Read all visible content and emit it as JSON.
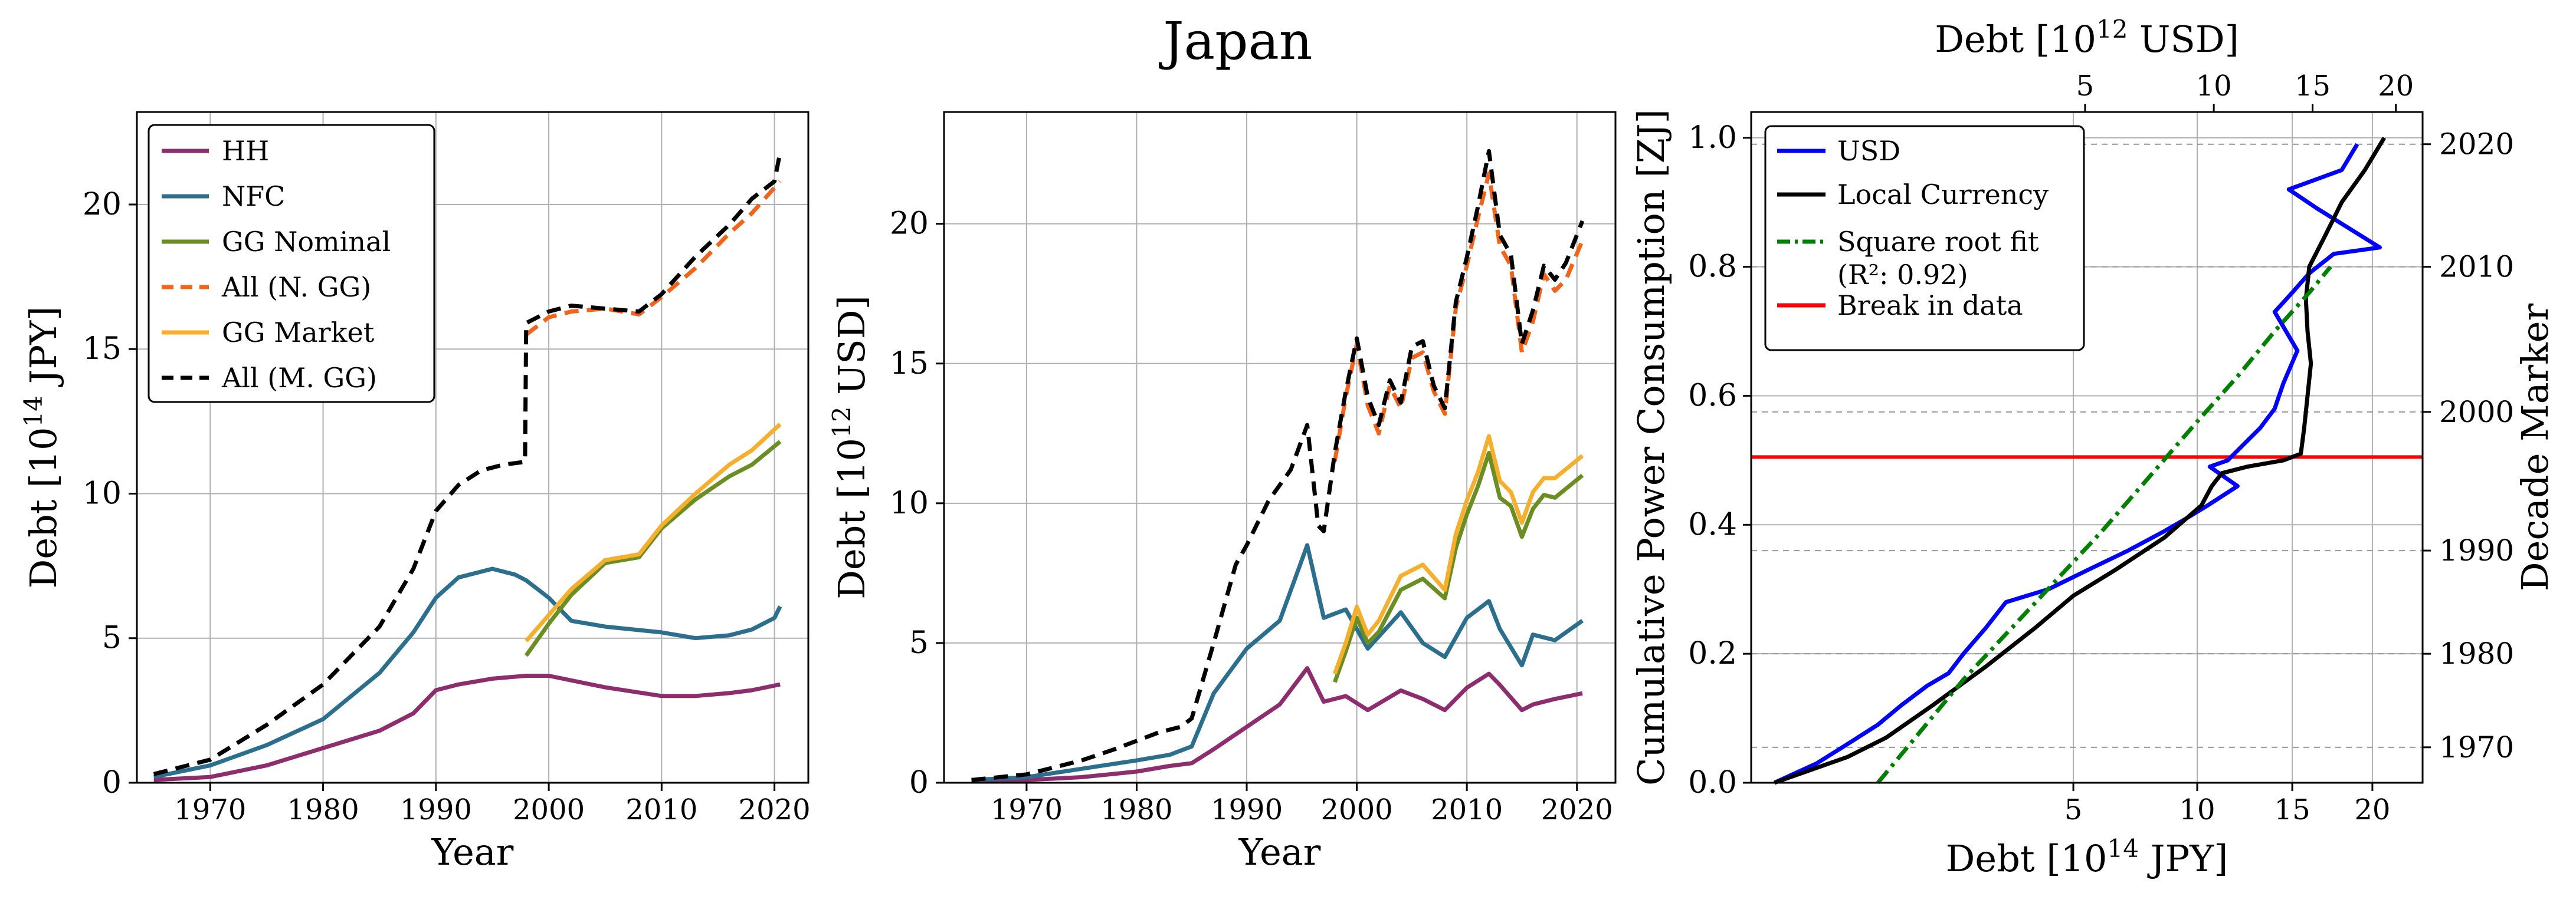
{
  "suptitle": "Japan",
  "colors": {
    "HH": "#8e2d6e",
    "NFC": "#2b6e8e",
    "GGN": "#6b8e23",
    "AllN": "#f26419",
    "GGM": "#f6ae2d",
    "AllM": "#000000",
    "USD": "#0000ff",
    "Local": "#000000",
    "Fit": "#008000",
    "Break": "#ff0000"
  },
  "chart_data": [
    {
      "type": "line",
      "title": "",
      "xlabel": "Year",
      "ylabel_main": "Debt [10",
      "ylabel_exp": "14",
      "ylabel_tail": " JPY]",
      "xlim": [
        1963.5,
        2023
      ],
      "ylim": [
        0,
        23.2
      ],
      "xticks": [
        1970,
        1980,
        1990,
        2000,
        2010,
        2020
      ],
      "yticks": [
        0,
        5,
        10,
        15,
        20
      ],
      "grid": true,
      "legend_position": "top-left",
      "legend": [
        {
          "key": "HH",
          "label": "HH",
          "dash": false
        },
        {
          "key": "NFC",
          "label": "NFC",
          "dash": false
        },
        {
          "key": "GGN",
          "label": "GG Nominal",
          "dash": false
        },
        {
          "key": "AllN",
          "label": "All (N. GG)",
          "dash": true
        },
        {
          "key": "GGM",
          "label": "GG Market",
          "dash": false
        },
        {
          "key": "AllM",
          "label": "All (M. GG)",
          "dash": true
        }
      ],
      "series": [
        {
          "key": "HH",
          "name": "HH",
          "dash": false,
          "x": [
            1965,
            1970,
            1975,
            1980,
            1985,
            1988,
            1990,
            1992,
            1995,
            1998,
            2000,
            2005,
            2010,
            2013,
            2016,
            2018,
            2020.5
          ],
          "y": [
            0.1,
            0.2,
            0.6,
            1.2,
            1.8,
            2.4,
            3.2,
            3.4,
            3.6,
            3.7,
            3.7,
            3.3,
            3.0,
            3.0,
            3.1,
            3.2,
            3.4
          ]
        },
        {
          "key": "NFC",
          "name": "NFC",
          "dash": false,
          "x": [
            1965,
            1970,
            1975,
            1980,
            1985,
            1988,
            1990,
            1992,
            1995,
            1997,
            1998,
            2000,
            2002,
            2005,
            2010,
            2013,
            2016,
            2018,
            2020,
            2020.5
          ],
          "y": [
            0.2,
            0.6,
            1.3,
            2.2,
            3.8,
            5.2,
            6.4,
            7.1,
            7.4,
            7.2,
            7.0,
            6.4,
            5.6,
            5.4,
            5.2,
            5.0,
            5.1,
            5.3,
            5.7,
            6.1
          ]
        },
        {
          "key": "GGN",
          "name": "GG Nominal",
          "dash": false,
          "x": [
            1998,
            2000,
            2002,
            2005,
            2008,
            2010,
            2013,
            2016,
            2018,
            2020.5
          ],
          "y": [
            4.4,
            5.5,
            6.5,
            7.6,
            7.8,
            8.8,
            9.8,
            10.6,
            11.0,
            11.8
          ]
        },
        {
          "key": "AllN",
          "name": "All (N. GG)",
          "dash": true,
          "x": [
            1998,
            2000,
            2002,
            2005,
            2008,
            2010,
            2013,
            2016,
            2018,
            2020.5
          ],
          "y": [
            15.5,
            16.1,
            16.3,
            16.4,
            16.2,
            16.8,
            17.8,
            19.0,
            19.7,
            20.8
          ]
        },
        {
          "key": "GGM",
          "name": "GG Market",
          "dash": false,
          "x": [
            1998,
            2000,
            2002,
            2005,
            2008,
            2010,
            2013,
            2016,
            2018,
            2020.5
          ],
          "y": [
            4.9,
            5.8,
            6.7,
            7.7,
            7.9,
            8.9,
            10.0,
            11.0,
            11.5,
            12.4
          ]
        },
        {
          "key": "AllM",
          "name": "All (M. GG)",
          "dash": true,
          "x": [
            1965,
            1970,
            1975,
            1980,
            1985,
            1988,
            1990,
            1992,
            1994,
            1995,
            1996,
            1997.9,
            1998,
            2000,
            2002,
            2005,
            2008,
            2010,
            2013,
            2016,
            2018,
            2020,
            2020.5
          ],
          "y": [
            0.3,
            0.8,
            2.0,
            3.4,
            5.4,
            7.4,
            9.4,
            10.3,
            10.8,
            10.9,
            11.0,
            11.1,
            15.9,
            16.3,
            16.5,
            16.4,
            16.3,
            16.9,
            18.2,
            19.3,
            20.2,
            20.8,
            21.8
          ]
        }
      ]
    },
    {
      "type": "line",
      "title": "",
      "xlabel": "Year",
      "ylabel_main": "Debt [10",
      "ylabel_exp": "12",
      "ylabel_tail": " USD]",
      "xlim": [
        1962.5,
        2023.5
      ],
      "ylim": [
        0,
        24
      ],
      "xticks": [
        1970,
        1980,
        1990,
        2000,
        2010,
        2020
      ],
      "yticks": [
        0,
        5,
        10,
        15,
        20
      ],
      "grid": true,
      "series": [
        {
          "key": "HH",
          "name": "HH",
          "dash": false,
          "x": [
            1965,
            1970,
            1975,
            1980,
            1983,
            1985,
            1987,
            1990,
            1993,
            1995.5,
            1997,
            1999,
            2001,
            2004,
            2006,
            2008,
            2010,
            2012,
            2013,
            2015,
            2016,
            2018,
            2020.5
          ],
          "y": [
            0.05,
            0.1,
            0.2,
            0.4,
            0.6,
            0.7,
            1.2,
            2.0,
            2.8,
            4.1,
            2.9,
            3.1,
            2.6,
            3.3,
            3.0,
            2.6,
            3.4,
            3.9,
            3.5,
            2.6,
            2.8,
            3.0,
            3.2
          ]
        },
        {
          "key": "NFC",
          "name": "NFC",
          "dash": false,
          "x": [
            1965,
            1970,
            1975,
            1980,
            1983,
            1985,
            1987,
            1990,
            1993,
            1995.5,
            1997,
            1999,
            2001,
            2004,
            2006,
            2008,
            2010,
            2012,
            2013,
            2015,
            2016,
            2018,
            2020.5
          ],
          "y": [
            0.1,
            0.2,
            0.5,
            0.8,
            1.0,
            1.3,
            3.2,
            4.8,
            5.8,
            8.5,
            5.9,
            6.2,
            4.8,
            6.1,
            5.0,
            4.5,
            5.9,
            6.5,
            5.5,
            4.2,
            5.3,
            5.1,
            5.8
          ]
        },
        {
          "key": "GGN",
          "name": "GG Nominal",
          "dash": false,
          "x": [
            1998,
            1999,
            2000,
            2001,
            2002,
            2004,
            2006,
            2008,
            2009,
            2010,
            2011,
            2012,
            2013,
            2014,
            2015,
            2016,
            2017,
            2018,
            2020.5
          ],
          "y": [
            3.6,
            4.7,
            5.9,
            5.0,
            5.4,
            6.9,
            7.3,
            6.6,
            8.4,
            9.6,
            10.6,
            11.8,
            10.2,
            9.9,
            8.8,
            9.8,
            10.3,
            10.2,
            11.0
          ]
        },
        {
          "key": "AllN",
          "name": "All (N. GG)",
          "dash": true,
          "x": [
            1998,
            1999,
            2000,
            2001,
            2002,
            2003,
            2004,
            2005,
            2006,
            2007,
            2008,
            2009,
            2010,
            2011,
            2012,
            2013,
            2014,
            2015,
            2016,
            2017,
            2018,
            2019,
            2020.5
          ],
          "y": [
            11.5,
            13.8,
            15.7,
            13.5,
            12.5,
            14.2,
            13.4,
            15.2,
            15.4,
            14.0,
            13.2,
            17.0,
            18.5,
            20.2,
            21.8,
            19.2,
            18.5,
            15.4,
            16.5,
            18.2,
            17.6,
            18.0,
            19.4
          ]
        },
        {
          "key": "GGM",
          "name": "GG Market",
          "dash": false,
          "x": [
            1998,
            1999,
            2000,
            2001,
            2002,
            2004,
            2006,
            2008,
            2009,
            2010,
            2011,
            2012,
            2013,
            2014,
            2015,
            2016,
            2017,
            2018,
            2020.5
          ],
          "y": [
            3.9,
            5.0,
            6.3,
            5.3,
            5.8,
            7.4,
            7.8,
            6.9,
            8.9,
            10.1,
            11.1,
            12.4,
            10.8,
            10.4,
            9.3,
            10.4,
            10.9,
            10.9,
            11.7
          ]
        },
        {
          "key": "AllM",
          "name": "All (M. GG)",
          "dash": true,
          "x": [
            1965,
            1970,
            1975,
            1978,
            1980,
            1982,
            1984,
            1985,
            1987,
            1989,
            1990,
            1992,
            1994,
            1995.5,
            1996.5,
            1997,
            1998,
            1999,
            2000,
            2001,
            2002,
            2003,
            2004,
            2005,
            2006,
            2007,
            2008,
            2009,
            2010,
            2011,
            2012,
            2013,
            2014,
            2015,
            2016,
            2017,
            2018,
            2019,
            2020.5
          ],
          "y": [
            0.1,
            0.3,
            0.8,
            1.2,
            1.5,
            1.8,
            2.0,
            2.3,
            5.0,
            7.8,
            8.5,
            10.1,
            11.2,
            12.8,
            9.2,
            9.0,
            11.8,
            14.0,
            15.9,
            13.8,
            12.8,
            14.4,
            13.6,
            15.6,
            15.8,
            14.2,
            13.4,
            17.2,
            18.8,
            20.6,
            22.6,
            19.6,
            18.9,
            15.7,
            16.9,
            18.5,
            18.0,
            18.6,
            20.1
          ]
        }
      ]
    },
    {
      "type": "line",
      "title": "",
      "xlabel_main": "Debt [10",
      "xlabel_exp": "14",
      "xlabel_tail": " JPY]",
      "top_xlabel_main": "Debt [10",
      "top_xlabel_exp": "12",
      "top_xlabel_tail": " USD]",
      "ylabel": "Cumulative Power Consumption [ZJ]",
      "right_ylabel": "Decade Marker",
      "xscale": "sqrt",
      "xlim": [
        -0.03,
        23.5
      ],
      "ylim": [
        0,
        1.04
      ],
      "xticks": [
        5,
        10,
        15,
        20
      ],
      "top_xticks": [
        5,
        10,
        15,
        20
      ],
      "yticks": [
        "0.0",
        "0.2",
        "0.4",
        "0.6",
        "0.8",
        "1.0"
      ],
      "decade_markers": [
        {
          "label": "1970",
          "y": 0.055
        },
        {
          "label": "1980",
          "y": 0.2
        },
        {
          "label": "1990",
          "y": 0.36
        },
        {
          "label": "2000",
          "y": 0.575
        },
        {
          "label": "2010",
          "y": 0.8
        },
        {
          "label": "2020",
          "y": 0.99
        }
      ],
      "legend_position": "top-left",
      "legend": [
        {
          "key": "USD",
          "label": "USD",
          "style": "solid"
        },
        {
          "key": "Local",
          "label": "Local Currency",
          "style": "solid"
        },
        {
          "key": "Fit",
          "label": "Square root fit",
          "label2": "(R²: 0.92)",
          "style": "dashdot"
        },
        {
          "key": "Break",
          "label": "Break in data",
          "style": "solid"
        }
      ],
      "break_y": 0.505,
      "series": [
        {
          "key": "USD",
          "name": "USD",
          "x": [
            0.0,
            0.1,
            0.3,
            0.6,
            0.9,
            1.3,
            1.7,
            2.0,
            2.5,
            3.0,
            4.2,
            5.5,
            7.0,
            8.5,
            9.5,
            10.5,
            12.0,
            10.6,
            11.5,
            12.5,
            13.2,
            14.0,
            14.5,
            15.3,
            14.0,
            15.0,
            16.0,
            17.5,
            20.5,
            16.5,
            14.8,
            18.0,
            19.0
          ],
          "y": [
            0.0,
            0.03,
            0.06,
            0.09,
            0.12,
            0.15,
            0.17,
            0.2,
            0.24,
            0.28,
            0.3,
            0.33,
            0.36,
            0.39,
            0.41,
            0.43,
            0.46,
            0.49,
            0.5,
            0.53,
            0.55,
            0.58,
            0.62,
            0.67,
            0.73,
            0.76,
            0.79,
            0.82,
            0.83,
            0.89,
            0.92,
            0.95,
            0.99
          ]
        },
        {
          "key": "Local",
          "name": "Local Currency",
          "x": [
            0.0,
            0.3,
            0.7,
            1.4,
            2.5,
            3.8,
            5.0,
            6.5,
            8.5,
            10.2,
            10.7,
            11.2,
            12.5,
            14.5,
            15.5,
            15.7,
            15.9,
            16.1,
            15.9,
            15.8,
            16.0,
            17.0,
            18.0,
            19.5,
            20.8
          ],
          "y": [
            0.0,
            0.04,
            0.07,
            0.12,
            0.18,
            0.24,
            0.29,
            0.33,
            0.38,
            0.43,
            0.46,
            0.48,
            0.49,
            0.5,
            0.51,
            0.55,
            0.6,
            0.65,
            0.7,
            0.75,
            0.8,
            0.85,
            0.9,
            0.95,
            1.0
          ]
        },
        {
          "key": "Fit",
          "name": "Square root fit",
          "x": [
            0.6,
            2.0,
            4.0,
            6.0,
            8.0,
            10.0,
            12.0,
            14.0,
            16.0,
            17.3
          ],
          "y": [
            0.0,
            0.16,
            0.29,
            0.39,
            0.48,
            0.56,
            0.63,
            0.7,
            0.76,
            0.8
          ]
        }
      ]
    }
  ]
}
